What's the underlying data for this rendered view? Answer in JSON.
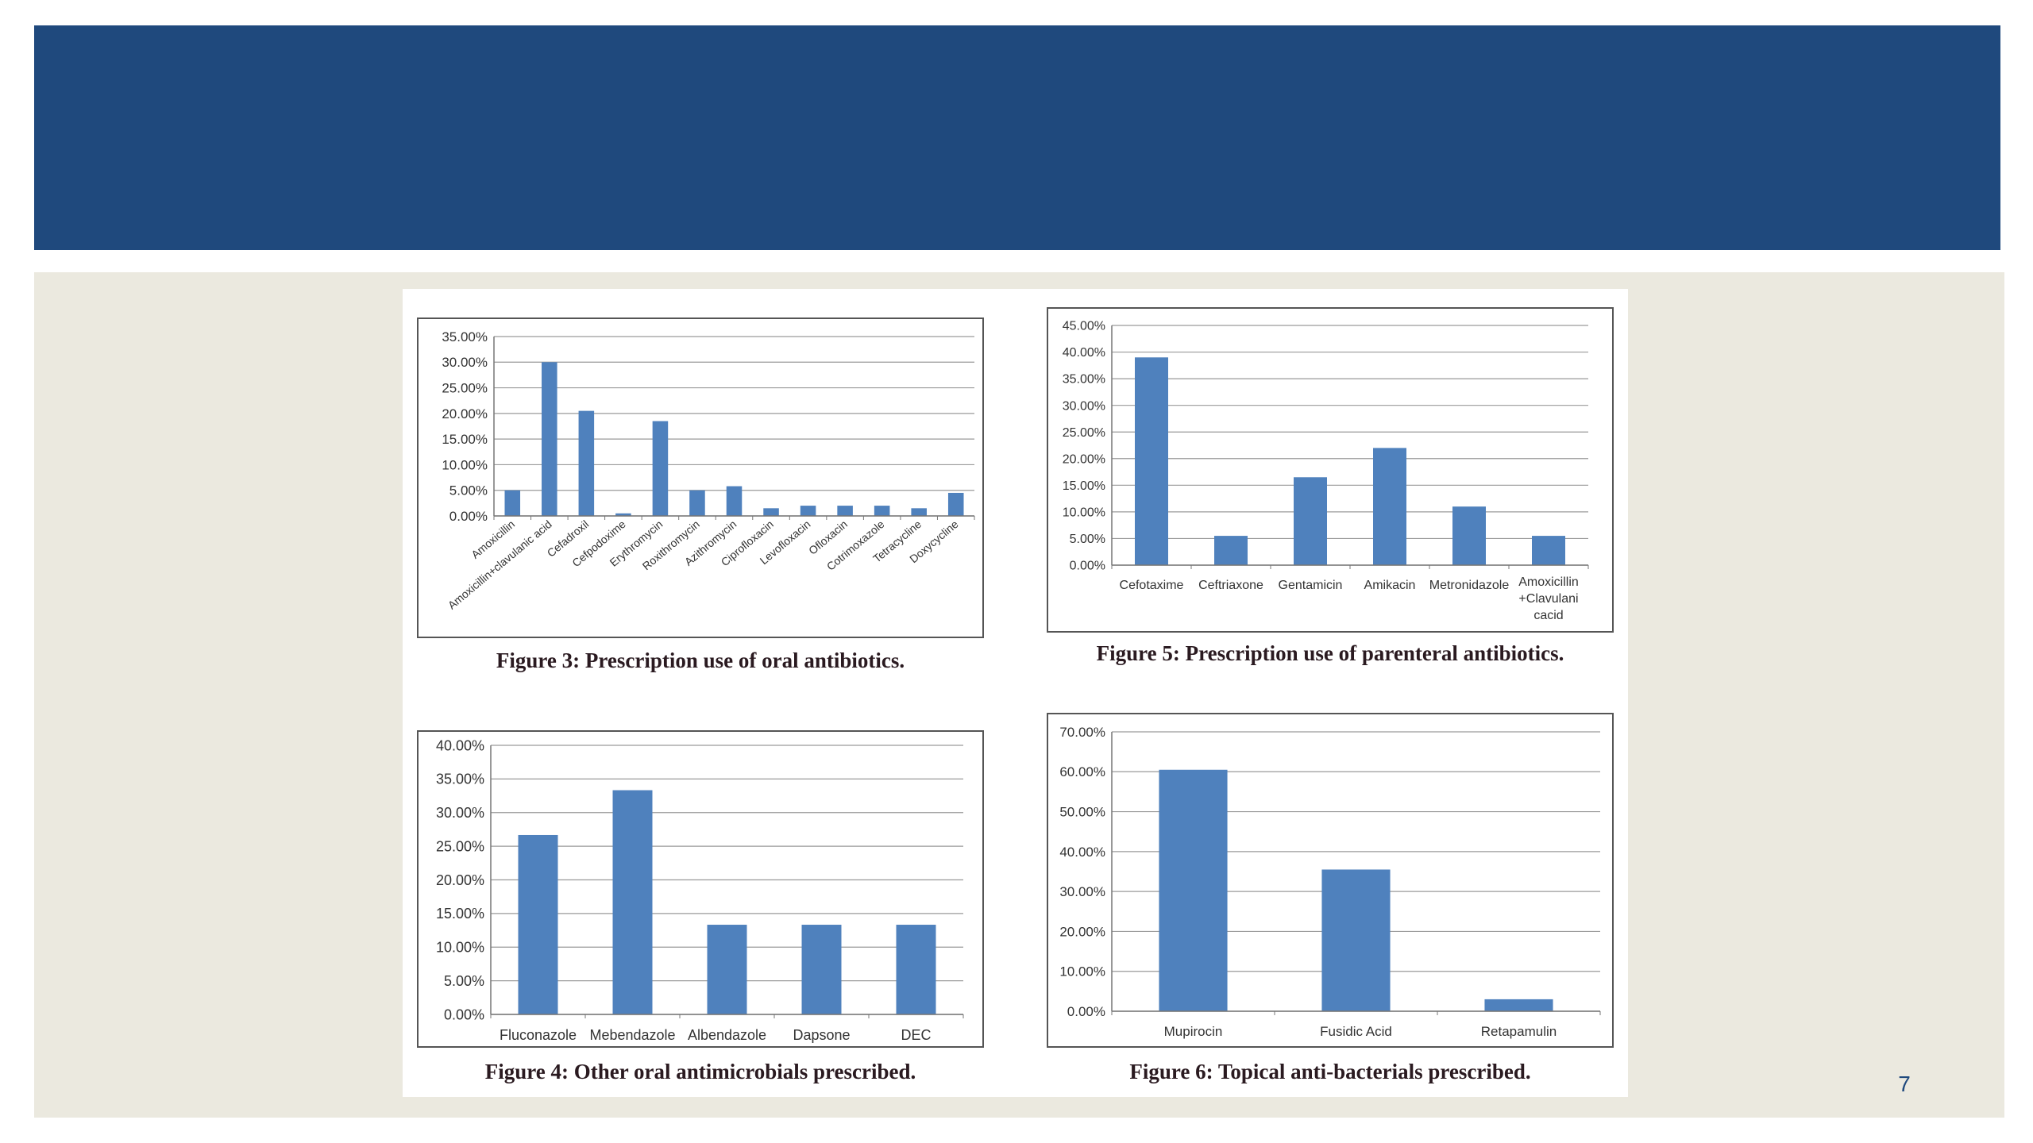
{
  "page": {
    "number": "7"
  },
  "colors": {
    "header": "#1f497d",
    "content_bg": "#ebe9df",
    "bar": "#4f81bd",
    "grid": "#9a9a9a",
    "page_number": "#1f497d"
  },
  "figures": [
    {
      "caption": "Figure 3: Prescription use of oral antibiotics."
    },
    {
      "caption": "Figure 5: Prescription use of parenteral antibiotics."
    },
    {
      "caption": "Figure 4: Other oral antimicrobials prescribed."
    },
    {
      "caption": "Figure 6: Topical anti-bacterials prescribed."
    }
  ],
  "chart_data": [
    {
      "id": "fig3",
      "type": "bar",
      "title": "",
      "categories": [
        "Amoxicillin",
        "Amoxicillin+clavulanic acid",
        "Cefadroxil",
        "Cefpodoxime",
        "Erythromycin",
        "Roxithromycin",
        "Azithromycin",
        "Ciprofloxacin",
        "Levofloxacin",
        "Ofloxacin",
        "Cotrimoxazole",
        "Tetracycline",
        "Doxycycline"
      ],
      "values": [
        5.0,
        30.0,
        20.5,
        0.5,
        18.5,
        5.0,
        5.8,
        1.5,
        2.0,
        2.0,
        2.0,
        1.5,
        4.5
      ],
      "ylim": [
        0,
        35
      ],
      "yticks": [
        "0.00%",
        "5.00%",
        "10.00%",
        "15.00%",
        "20.00%",
        "25.00%",
        "30.00%",
        "35.00%"
      ],
      "grid": true,
      "legend": "none"
    },
    {
      "id": "fig5",
      "type": "bar",
      "title": "",
      "categories": [
        "Cefotaxime",
        "Ceftriaxone",
        "Gentamicin",
        "Amikacin",
        "Metronidazole",
        "Amoxicillin +Clavulani cacid"
      ],
      "values": [
        39.0,
        5.5,
        16.5,
        22.0,
        11.0,
        5.5
      ],
      "ylim": [
        0,
        45
      ],
      "yticks": [
        "0.00%",
        "5.00%",
        "10.00%",
        "15.00%",
        "20.00%",
        "25.00%",
        "30.00%",
        "35.00%",
        "40.00%",
        "45.00%"
      ],
      "grid": true,
      "legend": "none"
    },
    {
      "id": "fig4",
      "type": "bar",
      "title": "",
      "categories": [
        "Fluconazole",
        "Mebendazole",
        "Albendazole",
        "Dapsone",
        "DEC"
      ],
      "values": [
        26.67,
        33.33,
        13.33,
        13.33,
        13.33
      ],
      "ylim": [
        0,
        40
      ],
      "yticks": [
        "0.00%",
        "5.00%",
        "10.00%",
        "15.00%",
        "20.00%",
        "25.00%",
        "30.00%",
        "35.00%",
        "40.00%"
      ],
      "grid": true,
      "legend": "none"
    },
    {
      "id": "fig6",
      "type": "bar",
      "title": "",
      "categories": [
        "Mupirocin",
        "Fusidic Acid",
        "Retapamulin"
      ],
      "values": [
        60.5,
        35.5,
        3.0
      ],
      "ylim": [
        0,
        70
      ],
      "yticks": [
        "0.00%",
        "10.00%",
        "20.00%",
        "30.00%",
        "40.00%",
        "50.00%",
        "60.00%",
        "70.00%"
      ],
      "grid": true,
      "legend": "none"
    }
  ]
}
